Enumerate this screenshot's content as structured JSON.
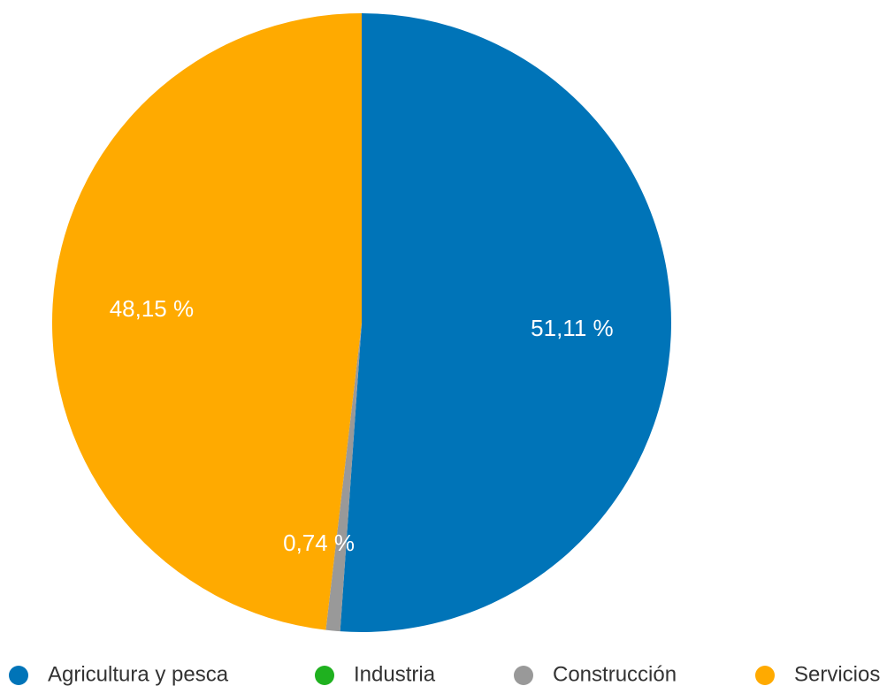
{
  "chart_data": {
    "type": "pie",
    "slices": [
      {
        "name": "Agricultura y pesca",
        "value": 51.11,
        "label": "51,11 %",
        "color": "#0074b8"
      },
      {
        "name": "Industria",
        "value": 0.0,
        "label": "",
        "color": "#1fb11f"
      },
      {
        "name": "Construcción",
        "value": 0.74,
        "label": "0,74 %",
        "color": "#999999"
      },
      {
        "name": "Servicios",
        "value": 48.15,
        "label": "48,15 %",
        "color": "#ffaa00"
      }
    ],
    "legend_position": "bottom",
    "start_angle": "top",
    "direction": "clockwise"
  }
}
